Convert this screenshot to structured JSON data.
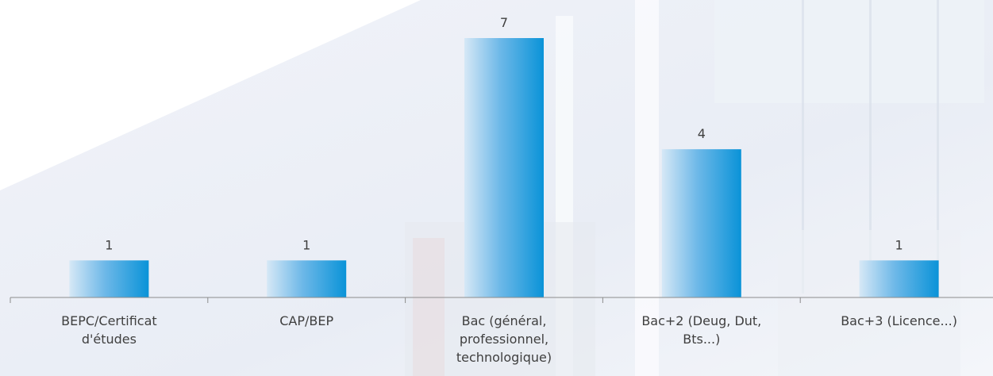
{
  "chart_data": {
    "type": "bar",
    "categories": [
      [
        "BEPC/Certificat",
        "d'études"
      ],
      [
        "CAP/BEP"
      ],
      [
        "Bac (général,",
        "professionnel,",
        "technologique)"
      ],
      [
        "Bac+2 (Deug, Dut,",
        "Bts...)"
      ],
      [
        "Bac+3 (Licence...)"
      ]
    ],
    "values": [
      1,
      1,
      7,
      4,
      1
    ],
    "ylim": [
      0,
      7
    ],
    "title": "",
    "xlabel": "",
    "ylabel": "",
    "grid": false,
    "legend": "none",
    "colors": {
      "bar_light": "#d6e8f6",
      "bar_dark": "#0a93d8",
      "axis": "#8c8c8c",
      "text": "#3f3f3f"
    }
  }
}
